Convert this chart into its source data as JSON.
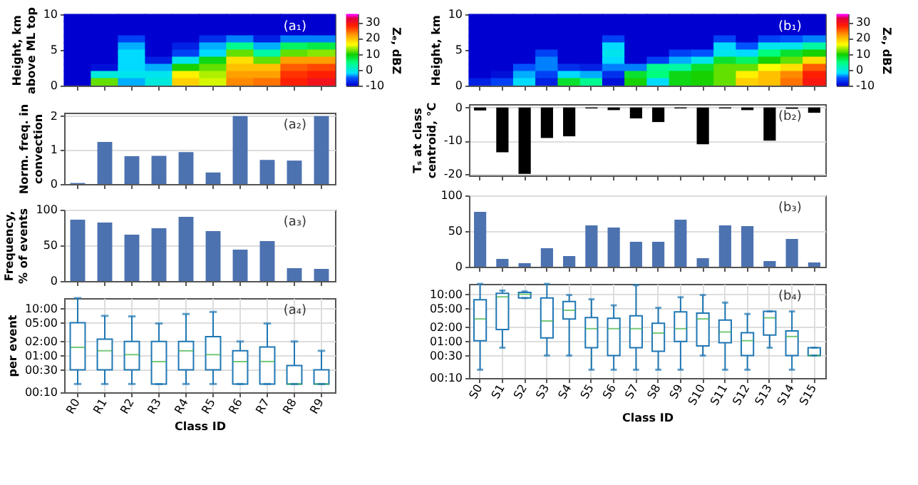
{
  "chart_data": [
    {
      "type": "heatmap",
      "ylabel": "Height, km\nabove ML top",
      "clabel": "Zₑ, dBZ",
      "annotations": [
        "(a₁)"
      ],
      "tick_labels": "y",
      "categories": [
        null,
        null,
        null,
        null,
        null,
        null,
        null,
        null,
        null,
        null
      ],
      "ylim": [
        0,
        10
      ],
      "yticks": [
        0,
        5,
        10
      ],
      "clim": [
        -10,
        35
      ],
      "cticks": [
        -10,
        0,
        10,
        20,
        30
      ],
      "cells": [
        [
          -10,
          -10,
          -10,
          -10,
          -10,
          -10,
          -10,
          -10,
          -10,
          -10
        ],
        [
          -10,
          -10,
          -10,
          -10,
          -10,
          -10,
          -10,
          -10,
          -10,
          -10
        ],
        [
          -10,
          -10,
          -10,
          -10,
          -10,
          -10,
          -10,
          -10,
          -10,
          -10
        ],
        [
          -10,
          -10,
          -6,
          -10,
          -10,
          -7,
          -4,
          -8,
          -4,
          -4
        ],
        [
          -10,
          -10,
          -3,
          -10,
          -8,
          -3,
          4,
          -3,
          6,
          7
        ],
        [
          -10,
          -10,
          -2,
          -10,
          -6,
          -2,
          12,
          3,
          12,
          13
        ],
        [
          -10,
          -10,
          -2,
          -8,
          -1,
          9,
          18,
          12,
          22,
          22
        ],
        [
          -10,
          -9,
          -2,
          -3,
          10,
          12,
          20,
          20,
          25,
          26
        ],
        [
          -10,
          0,
          -1,
          -1,
          17,
          14,
          22,
          22,
          27,
          28
        ],
        [
          -10,
          12,
          -3,
          0,
          19,
          15,
          23,
          24,
          28,
          30
        ]
      ]
    },
    {
      "type": "bar",
      "ylabel": "Norm. freq. in\nconvection",
      "annotations": [
        "(a₂)"
      ],
      "tick_labels": "y",
      "grid": "y",
      "categories": [
        null,
        null,
        null,
        null,
        null,
        null,
        null,
        null,
        null,
        null
      ],
      "series": [
        {
          "color": "#4c72b0",
          "values": [
            0.03,
            1.24,
            0.82,
            0.83,
            0.94,
            0.34,
            2.0,
            0.71,
            0.69,
            2.0
          ]
        }
      ],
      "ylim": [
        0,
        2.1
      ],
      "yticks": [
        0,
        1,
        2
      ]
    },
    {
      "type": "bar",
      "ylabel": "Frequency,\n% of events",
      "annotations": [
        "(a₃)"
      ],
      "tick_labels": "y",
      "grid": "y",
      "categories": [
        null,
        null,
        null,
        null,
        null,
        null,
        null,
        null,
        null,
        null
      ],
      "series": [
        {
          "color": "#4c72b0",
          "values": [
            86,
            82,
            65,
            74,
            90,
            70,
            44,
            56,
            18,
            17
          ]
        }
      ],
      "ylim": [
        0,
        100
      ],
      "yticks": [
        0,
        50,
        100
      ]
    },
    {
      "type": "box",
      "ylabel": "per event",
      "xlabel": "Class ID",
      "annotations": [
        "(a₄)"
      ],
      "grid": true,
      "log": true,
      "categories": [
        "R0",
        "R1",
        "R2",
        "R3",
        "R4",
        "R5",
        "R6",
        "R7",
        "R8",
        "R9"
      ],
      "ylim": [
        10,
        1000
      ],
      "yticks": [
        {
          "value": 10,
          "label": "00:10"
        },
        {
          "value": 30,
          "label": "00:30"
        },
        {
          "value": 60,
          "label": "01:00"
        },
        {
          "value": 120,
          "label": "02:00"
        },
        {
          "value": 300,
          "label": "05:00"
        },
        {
          "value": 600,
          "label": "10:00"
        }
      ],
      "series": [
        {
          "color": "#1f77b4",
          "boxes": [
            {
              "low": 15,
              "q1": 30,
              "median": 90,
              "q3": 300,
              "high": 1000
            },
            {
              "low": 15,
              "q1": 30,
              "median": 76,
              "q3": 135,
              "high": 420
            },
            {
              "low": 15,
              "q1": 30,
              "median": 63,
              "q3": 120,
              "high": 410
            },
            {
              "low": 15,
              "q1": 15,
              "median": 45,
              "q3": 120,
              "high": 290
            },
            {
              "low": 15,
              "q1": 30,
              "median": 76,
              "q3": 120,
              "high": 460
            },
            {
              "low": 15,
              "q1": 30,
              "median": 63,
              "q3": 152,
              "high": 510
            },
            {
              "low": 15,
              "q1": 15,
              "median": 45,
              "q3": 76,
              "high": 120
            },
            {
              "low": 15,
              "q1": 15,
              "median": 45,
              "q3": 92,
              "high": 290
            },
            {
              "low": 15,
              "q1": 15,
              "median": 15,
              "q3": 37,
              "high": 120
            },
            {
              "low": 15,
              "q1": 15,
              "median": 15,
              "q3": 30,
              "high": 76
            }
          ]
        }
      ]
    },
    {
      "type": "heatmap",
      "ylabel": "Height, km",
      "clabel": "Zₑ, dBZ",
      "annotations": [
        "(b₁)"
      ],
      "tick_labels": "y",
      "categories": [
        null,
        null,
        null,
        null,
        null,
        null,
        null,
        null,
        null,
        null,
        null,
        null,
        null,
        null,
        null,
        null
      ],
      "ylim": [
        0,
        10
      ],
      "yticks": [
        0,
        5,
        10
      ],
      "clim": [
        -10,
        35
      ],
      "cticks": [
        -10,
        0,
        10,
        20,
        30
      ],
      "cells": [
        [
          -10,
          -10,
          -10,
          -10,
          -10,
          -10,
          -10,
          -10,
          -10,
          -10,
          -10,
          -10,
          -10,
          -10,
          -10,
          -10
        ],
        [
          -10,
          -10,
          -10,
          -10,
          -10,
          -10,
          -10,
          -10,
          -10,
          -10,
          -10,
          -10,
          -10,
          -10,
          -10,
          -10
        ],
        [
          -10,
          -10,
          -10,
          -10,
          -10,
          -10,
          -10,
          -10,
          -10,
          -10,
          -10,
          -10,
          -10,
          -10,
          -10,
          -10
        ],
        [
          -10,
          -10,
          -10,
          -10,
          -10,
          -10,
          -6,
          -10,
          -10,
          -10,
          -10,
          -6,
          -10,
          -6,
          -5,
          -4
        ],
        [
          -10,
          -10,
          -10,
          -10,
          -10,
          -10,
          -2,
          -10,
          -10,
          -10,
          -10,
          -2,
          -5,
          -1,
          -1,
          3
        ],
        [
          -10,
          -10,
          -10,
          -6,
          -10,
          -10,
          -1,
          -10,
          -10,
          -6,
          -5,
          -1,
          -2,
          5,
          8,
          10
        ],
        [
          -10,
          -10,
          -10,
          -4,
          -10,
          -10,
          -2,
          -10,
          -6,
          -3,
          -1,
          8,
          6,
          10,
          12,
          18
        ],
        [
          -10,
          -10,
          -5,
          -4,
          -7,
          -8,
          -4,
          -4,
          4,
          3,
          8,
          12,
          12,
          16,
          18,
          25
        ],
        [
          -10,
          -9,
          -3,
          -6,
          -2,
          -3,
          -7,
          8,
          5,
          9,
          10,
          12,
          17,
          20,
          23,
          28
        ],
        [
          -8,
          -6,
          -2,
          -8,
          8,
          4,
          -9,
          10,
          -2,
          9,
          10,
          12,
          19,
          20,
          24,
          29
        ]
      ]
    },
    {
      "type": "bar",
      "ylabel": "Tₛ at class\ncentroid, °C",
      "annotations": [
        "(b₂)"
      ],
      "tick_labels": "y",
      "grid": "y",
      "categories": [
        null,
        null,
        null,
        null,
        null,
        null,
        null,
        null,
        null,
        null,
        null,
        null,
        null,
        null,
        null,
        null
      ],
      "series": [
        {
          "color": "#000000",
          "values": [
            -0.9,
            -13.5,
            -20,
            -9.2,
            -8.7,
            -0.3,
            -0.8,
            -3.3,
            -4.4,
            -0.3,
            -11.1,
            -0.3,
            -0.8,
            -10,
            -0.4,
            -1.6
          ]
        }
      ],
      "ylim": [
        -20.5,
        1
      ],
      "yticks": [
        -20,
        -10,
        0
      ]
    },
    {
      "type": "bar",
      "annotations": [
        "(b₃)"
      ],
      "tick_labels": "y",
      "grid": "y",
      "categories": [
        null,
        null,
        null,
        null,
        null,
        null,
        null,
        null,
        null,
        null,
        null,
        null,
        null,
        null,
        null,
        null
      ],
      "series": [
        {
          "color": "#4c72b0",
          "values": [
            77,
            11,
            5,
            26,
            15,
            58,
            55,
            35,
            35,
            66,
            12,
            58,
            57,
            8,
            39,
            6
          ]
        }
      ],
      "ylim": [
        0,
        100
      ],
      "yticks": [
        0,
        50,
        100
      ]
    },
    {
      "type": "box",
      "xlabel": "Class ID",
      "annotations": [
        "(b₄)"
      ],
      "grid": true,
      "log": true,
      "categories": [
        "S0",
        "S1",
        "S2",
        "S3",
        "S4",
        "S5",
        "S6",
        "S7",
        "S8",
        "S9",
        "S10",
        "S11",
        "S12",
        "S13",
        "S14",
        "S15"
      ],
      "ylim": [
        10,
        1000
      ],
      "yticks": [
        {
          "value": 10,
          "label": "00:10"
        },
        {
          "value": 30,
          "label": "00:30"
        },
        {
          "value": 60,
          "label": "01:00"
        },
        {
          "value": 120,
          "label": "02:00"
        },
        {
          "value": 300,
          "label": "05:00"
        },
        {
          "value": 600,
          "label": "10:00"
        }
      ],
      "series": [
        {
          "color": "#1f77b4",
          "boxes": [
            {
              "low": 15,
              "q1": 62,
              "median": 180,
              "q3": 460,
              "high": 1000
            },
            {
              "low": 44,
              "q1": 107,
              "median": 530,
              "q3": 630,
              "high": 720
            },
            {
              "low": 500,
              "q1": 500,
              "median": 600,
              "q3": 660,
              "high": 690
            },
            {
              "low": 30,
              "q1": 71,
              "median": 163,
              "q3": 500,
              "high": 1000
            },
            {
              "low": 30,
              "q1": 180,
              "median": 275,
              "q3": 420,
              "high": 580
            },
            {
              "low": 15,
              "q1": 44,
              "median": 112,
              "q3": 193,
              "high": 470
            },
            {
              "low": 15,
              "q1": 30,
              "median": 112,
              "q3": 185,
              "high": 350
            },
            {
              "low": 15,
              "q1": 44,
              "median": 112,
              "q3": 210,
              "high": 940
            },
            {
              "low": 15,
              "q1": 37,
              "median": 90,
              "q3": 145,
              "high": 310
            },
            {
              "low": 15,
              "q1": 60,
              "median": 112,
              "q3": 255,
              "high": 520
            },
            {
              "low": 30,
              "q1": 48,
              "median": 180,
              "q3": 240,
              "high": 580
            },
            {
              "low": 15,
              "q1": 56,
              "median": 95,
              "q3": 170,
              "high": 400
            },
            {
              "low": 15,
              "q1": 30,
              "median": 62,
              "q3": 92,
              "high": 230
            },
            {
              "low": 44,
              "q1": 82,
              "median": 190,
              "q3": 260,
              "high": 260
            },
            {
              "low": 15,
              "q1": 30,
              "median": 76,
              "q3": 100,
              "high": 260
            },
            {
              "low": 30,
              "q1": 30,
              "median": 30,
              "q3": 44,
              "high": 44
            }
          ]
        }
      ]
    }
  ]
}
